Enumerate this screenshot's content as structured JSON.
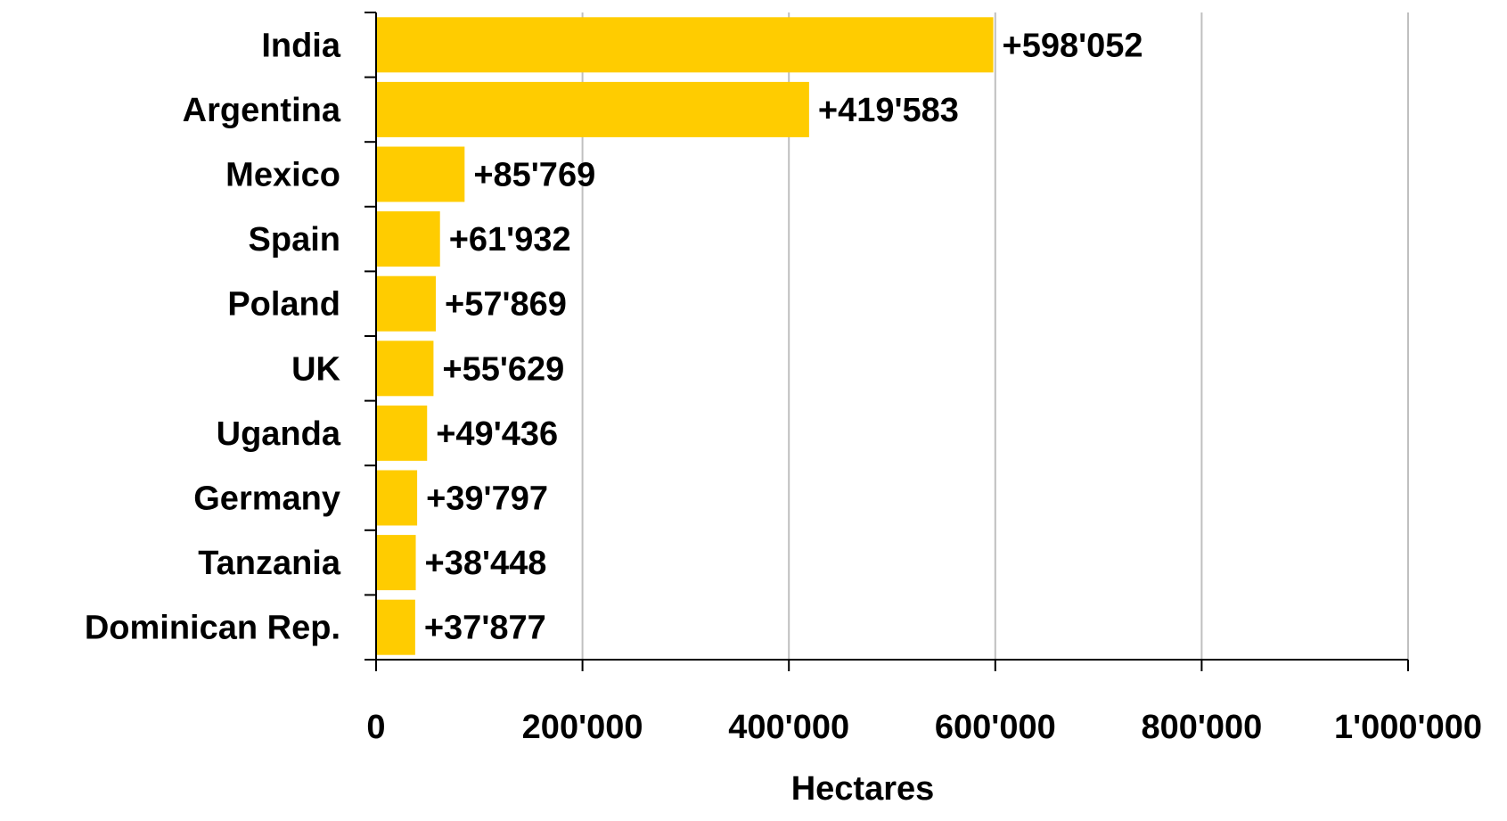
{
  "chart_data": {
    "type": "bar",
    "orientation": "horizontal",
    "categories": [
      "India",
      "Argentina",
      "Mexico",
      "Spain",
      "Poland",
      "UK",
      "Uganda",
      "Germany",
      "Tanzania",
      "Dominican Rep."
    ],
    "values": [
      598052,
      419583,
      85769,
      61932,
      57869,
      55629,
      49436,
      39797,
      38448,
      37877
    ],
    "data_labels": [
      "+598'052",
      "+419'583",
      "+85'769",
      "+61'932",
      "+57'869",
      "+55'629",
      "+49'436",
      "+39'797",
      "+38'448",
      "+37'877"
    ],
    "xlabel": "Hectares",
    "xlim": [
      0,
      1000000
    ],
    "x_ticks": [
      0,
      200000,
      400000,
      600000,
      800000,
      1000000
    ],
    "x_tick_labels": [
      "0",
      "200'000",
      "400'000",
      "600'000",
      "800'000",
      "1'000'000"
    ],
    "grid": "vertical",
    "legend": "none",
    "colors": {
      "bar": "#FFCC00",
      "grid": "#C0C0C0",
      "axis": "#000000"
    }
  }
}
